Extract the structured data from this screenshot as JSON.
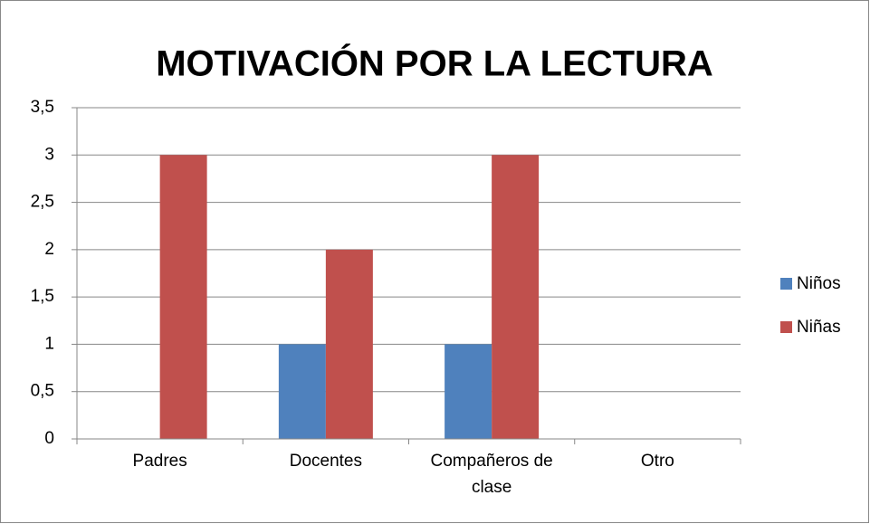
{
  "chart_data": {
    "type": "bar",
    "title": "MOTIVACIÓN POR LA LECTURA",
    "categories": [
      "Padres",
      "Docentes",
      "Compañeros de clase",
      "Otro"
    ],
    "series": [
      {
        "name": "Niños",
        "color": "#4f81bd",
        "values": [
          0,
          1,
          1,
          0
        ]
      },
      {
        "name": "Niñas",
        "color": "#c0504d",
        "values": [
          3,
          2,
          3,
          0
        ]
      }
    ],
    "ylim": [
      0,
      3.5
    ],
    "yticks": [
      0,
      {
        "value": 0.5,
        "label": "0,5"
      },
      1,
      {
        "value": 1.5,
        "label": "1,5"
      },
      2,
      {
        "value": 2.5,
        "label": "2,5"
      },
      3,
      {
        "value": 3.5,
        "label": "3,5"
      }
    ],
    "grid": true,
    "legend": "right"
  }
}
